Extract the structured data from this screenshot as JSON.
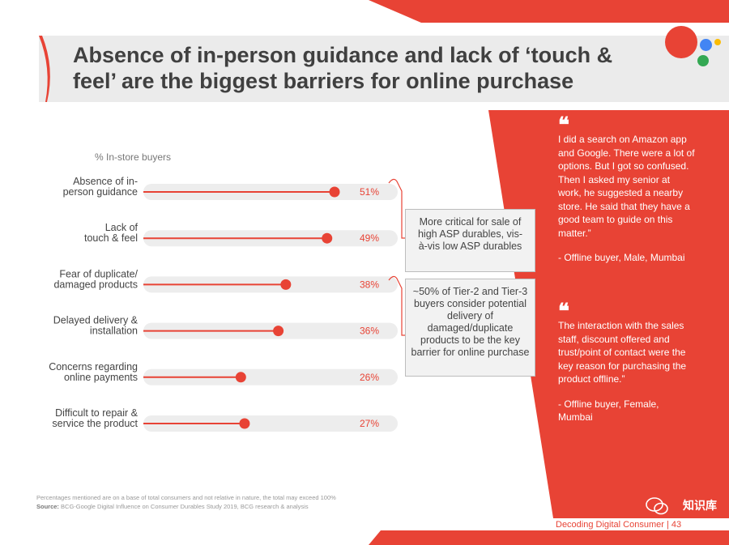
{
  "title": "Absence of in-person guidance and lack of ‘touch & feel’ are the biggest barriers for online purchase",
  "subtitle": "% In-store buyers",
  "chart_data": {
    "type": "bar",
    "title": "",
    "xlabel": "",
    "ylabel": "% In-store buyers",
    "xlim": [
      0,
      100
    ],
    "categories": [
      "Absence of in-person guidance",
      "Lack of touch & feel",
      "Fear of duplicate/ damaged products",
      "Delayed delivery & installation",
      "Concerns regarding online payments",
      "Difficult to repair & service the product"
    ],
    "category_lines": [
      [
        "Absence of in-",
        "person guidance"
      ],
      [
        "Lack of",
        "touch & feel"
      ],
      [
        "Fear of duplicate/",
        "damaged products"
      ],
      [
        "Delayed delivery &",
        "installation"
      ],
      [
        "Concerns regarding",
        "online payments"
      ],
      [
        "Difficult to repair &",
        "service the product"
      ]
    ],
    "values": [
      51,
      49,
      38,
      36,
      26,
      27
    ],
    "value_labels": [
      "51%",
      "49%",
      "38%",
      "36%",
      "26%",
      "27%"
    ]
  },
  "callouts": [
    "More critical for sale of high ASP durables, vis-à-vis low ASP durables",
    "~50% of Tier-2 and Tier-3 buyers consider potential delivery of damaged/duplicate products to be the key barrier for online purchase"
  ],
  "quotes": [
    {
      "text": "I did a search on Amazon app and Google. There were a lot of options. But I got so confused. Then I asked my senior at work, he suggested a nearby store. He said that they have a good team to guide on this matter.”",
      "author": "- Offline buyer, Male, Mumbai"
    },
    {
      "text": "The interaction with the sales staff, discount offered and trust/point of contact were the key reason for purchasing the product offline.”",
      "author": "- Offline buyer, Female, Mumbai"
    }
  ],
  "footnote": "Percentages mentioned are on a base of total consumers and not relative in nature, the total may exceed 100%",
  "source_label": "Source:",
  "source": "BCG-Google Digital Influence on Consumer Durables Study 2019, BCG research & analysis",
  "footer": "Decoding Digital Consumer | 43",
  "watermark": "知识库",
  "colors": {
    "accent": "#e84335",
    "bar_track": "#ededed",
    "blue": "#4285f4",
    "yellow": "#fbbc05",
    "green": "#34a853"
  }
}
